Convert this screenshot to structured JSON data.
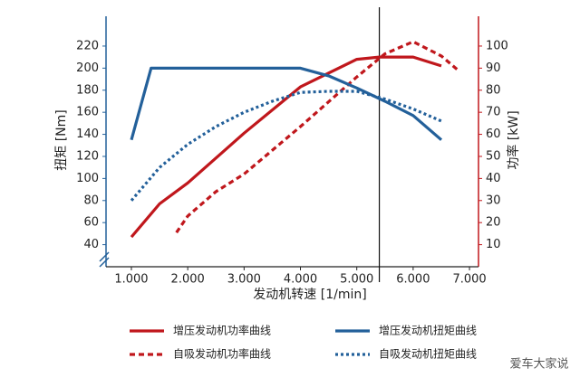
{
  "chart_data": {
    "type": "line",
    "xlabel": "发动机转速 [1/min]",
    "ylabel": "扭矩 [Nm]",
    "y2label": "功率 [kW]",
    "xlim": [
      550,
      7160
    ],
    "xticks": [
      {
        "value": 1000,
        "label": "1.000"
      },
      {
        "value": 2000,
        "label": "2.000"
      },
      {
        "value": 3000,
        "label": "3.000"
      },
      {
        "value": 4000,
        "label": "4.000"
      },
      {
        "value": 5000,
        "label": "5.000"
      },
      {
        "value": 6000,
        "label": "6.000"
      },
      {
        "value": 7000,
        "label": "7.000"
      }
    ],
    "ylim": [
      20,
      247
    ],
    "yticks": [
      40,
      60,
      80,
      100,
      120,
      140,
      160,
      180,
      200,
      220
    ],
    "y2lim": [
      0,
      113.5
    ],
    "y2ticks": [
      10,
      20,
      30,
      40,
      50,
      60,
      70,
      80,
      90,
      100
    ],
    "vline": 5400,
    "grid": false,
    "series": [
      {
        "name": "增压发动机功率曲线",
        "color": "#c0171c",
        "style": "solid",
        "axis": "y2",
        "x": [
          1000,
          1500,
          2000,
          3000,
          4000,
          5000,
          5400,
          6000,
          6500
        ],
        "values": [
          13.5,
          28.5,
          38,
          60.5,
          81.5,
          94,
          95,
          95,
          91
        ]
      },
      {
        "name": "自吸发动机功率曲线",
        "color": "#c0171c",
        "style": "dashed",
        "axis": "y2",
        "x": [
          1800,
          2000,
          2500,
          3000,
          4000,
          5000,
          5500,
          6000,
          6500,
          6800
        ],
        "values": [
          15.5,
          23,
          34,
          42,
          63.5,
          86,
          96.5,
          102,
          95.5,
          89
        ]
      },
      {
        "name": "增压发动机扭矩曲线",
        "color": "#23609a",
        "style": "solid",
        "axis": "y",
        "x": [
          1000,
          1350,
          4000,
          4500,
          5000,
          5500,
          6000,
          6500
        ],
        "values": [
          135,
          200,
          200,
          193,
          182,
          170,
          157,
          135
        ]
      },
      {
        "name": "自吸发动机扭矩曲线",
        "color": "#23609a",
        "style": "dotted",
        "axis": "y",
        "x": [
          1000,
          1500,
          2000,
          2500,
          3000,
          3500,
          4000,
          4500,
          5000,
          5500,
          6000,
          6500
        ],
        "values": [
          80,
          110,
          131,
          147,
          160,
          170,
          178,
          179,
          179,
          172,
          163,
          152
        ]
      }
    ],
    "watermark": "爱车大家说"
  }
}
